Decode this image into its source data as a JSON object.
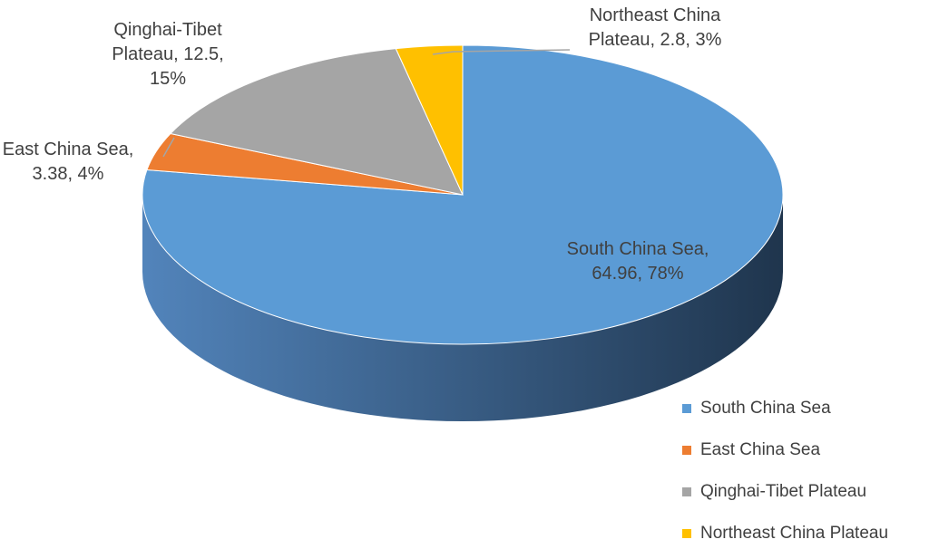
{
  "chart_data": {
    "type": "pie",
    "categories": [
      "South China Sea",
      "East China Sea",
      "Qinghai-Tibet Plateau",
      "Northeast China Plateau"
    ],
    "values": [
      64.96,
      3.38,
      12.5,
      2.8
    ],
    "value_labels": [
      "South China Sea, 64.96, 78%",
      "East China Sea, 3.38, 4%",
      "Qinghai-Tibet Plateau, 12.5, 15%",
      "Northeast China Plateau, 2.8, 3%"
    ],
    "colors": [
      "#5b9bd5",
      "#ed7d31",
      "#a5a5a5",
      "#ffc000"
    ],
    "legend": "bottom-right"
  }
}
